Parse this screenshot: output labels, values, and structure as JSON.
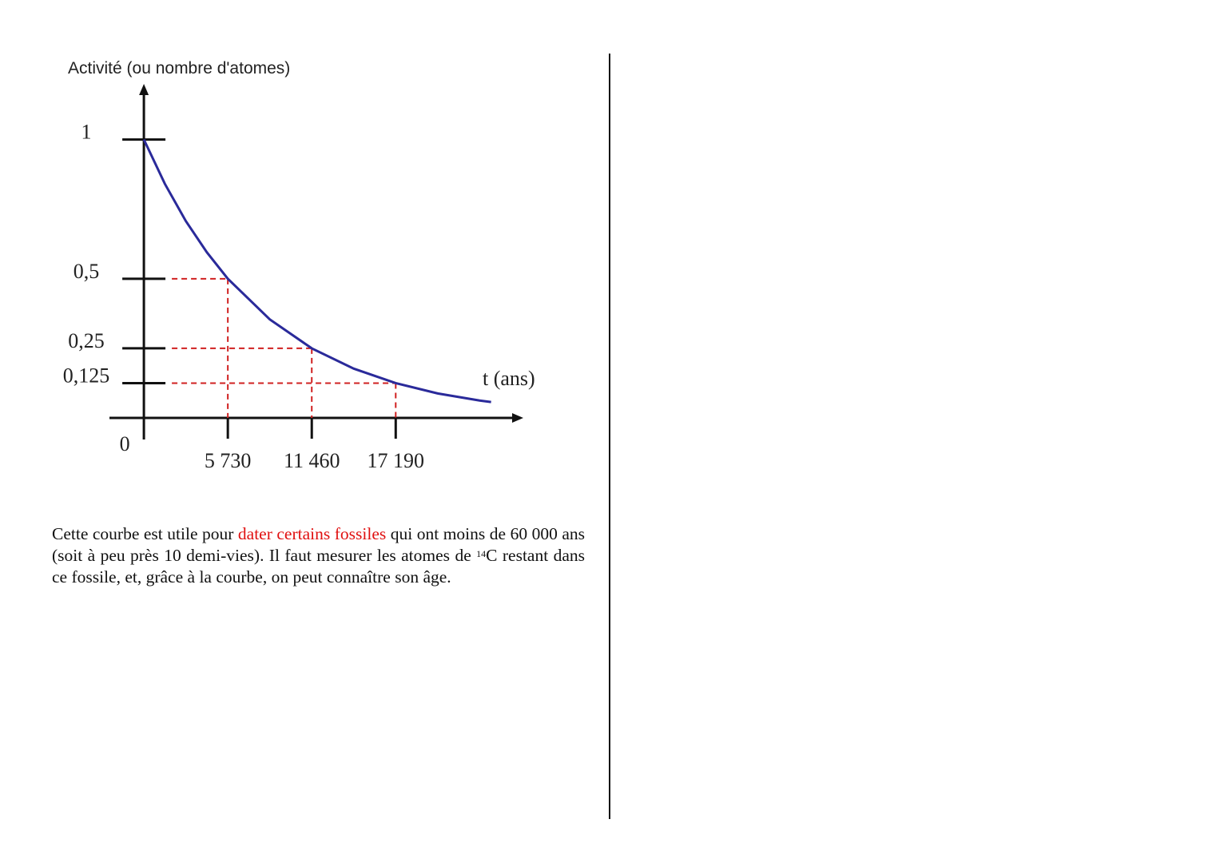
{
  "chart_data": {
    "type": "line",
    "y_label": "Activité (ou nombre d'atomes)",
    "x_label": "t (ans)",
    "x": [
      0,
      1432.5,
      2865,
      4297.5,
      5730,
      8595,
      11460,
      14325,
      17190,
      20055,
      22920,
      23700
    ],
    "series": [
      {
        "color": "#2a2a9a",
        "values": [
          1,
          0.841,
          0.707,
          0.595,
          0.5,
          0.354,
          0.25,
          0.177,
          0.125,
          0.088,
          0.0625,
          0.057
        ]
      }
    ],
    "xlim": [
      -2350,
      25900
    ],
    "ylim": [
      0,
      1.2
    ],
    "xticks": [
      {
        "value": 0,
        "label": "0"
      },
      {
        "value": 5730,
        "label": "5 730"
      },
      {
        "value": 11460,
        "label": "11 460"
      },
      {
        "value": 17190,
        "label": "17 190"
      }
    ],
    "yticks": [
      1,
      {
        "value": 0.5,
        "label": "0,5"
      },
      {
        "value": 0.25,
        "label": "0,25"
      },
      {
        "value": 0.125,
        "label": "0,125"
      }
    ],
    "guide_color": "#d02020"
  },
  "paragraph": [
    {
      "text": "Cette courbe est utile pour "
    },
    {
      "text": "dater certains fossiles",
      "color": "#e01010"
    },
    {
      "text": " qui ont moins de 60 000 ans (soit à peu près 10 demi-vies). Il faut mesurer les atomes de "
    },
    {
      "text": "14",
      "sup": true
    },
    {
      "text": "C restant dans ce fossile, et, grâce à la courbe, on peut connaître son âge."
    }
  ]
}
